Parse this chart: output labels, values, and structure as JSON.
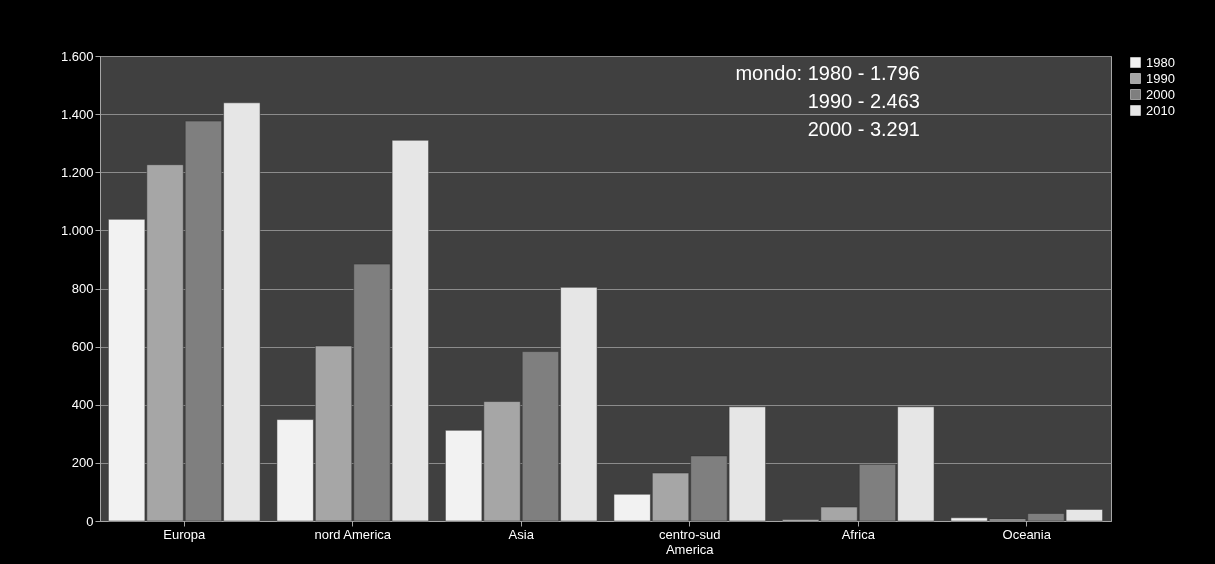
{
  "chart_data": {
    "type": "bar",
    "categories": [
      "Europa",
      "nord America",
      "Asia",
      "centro-sud America",
      "Africa",
      "Oceania"
    ],
    "series": [
      {
        "name": "1980",
        "color": "#f2f2f2",
        "values": [
          1038,
          349,
          312,
          92,
          4,
          11
        ]
      },
      {
        "name": "1990",
        "color": "#a6a6a6",
        "values": [
          1226,
          602,
          411,
          165,
          48,
          7
        ]
      },
      {
        "name": "2000",
        "color": "#7f7f7f",
        "values": [
          1376,
          884,
          583,
          224,
          195,
          26
        ]
      },
      {
        "name": "2010",
        "color": "#e6e6e6",
        "values": [
          1439,
          1310,
          804,
          393,
          393,
          40
        ]
      }
    ],
    "ylim": [
      0,
      1600
    ],
    "yticks": [
      0,
      200,
      400,
      600,
      800,
      {
        "value": 1000,
        "label": "1.000"
      },
      {
        "value": 1200,
        "label": "1.200"
      },
      {
        "value": 1400,
        "label": "1.400"
      },
      {
        "value": 1600,
        "label": "1.600"
      }
    ],
    "grid": "y",
    "legend": "right",
    "annotations": [
      "mondo:  1980 - 1.796",
      "1990 - 2.463",
      "2000 - 3.291"
    ]
  }
}
